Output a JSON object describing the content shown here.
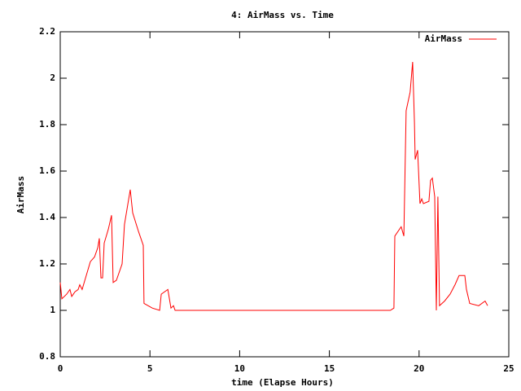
{
  "chart_data": {
    "type": "line",
    "title": "4: AirMass vs. Time",
    "x_label": "time (Elapse Hours)",
    "y_label": "AirMass",
    "xlim": [
      0,
      25
    ],
    "xticks": [
      0,
      5,
      10,
      15,
      20,
      25
    ],
    "ylim": [
      0.8,
      2.2
    ],
    "yticks": [
      0.8,
      1,
      1.2,
      1.4,
      1.6,
      1.8,
      2,
      2.2
    ],
    "legend": "top-right",
    "x": [
      0,
      0.09,
      0.36,
      0.54,
      0.64,
      0.82,
      1.0,
      1.09,
      1.22,
      1.41,
      1.68,
      1.91,
      2.09,
      2.18,
      2.27,
      2.36,
      2.45,
      2.68,
      2.86,
      2.95,
      3.13,
      3.45,
      3.58,
      3.9,
      4.04,
      4.36,
      4.63,
      4.67,
      4.9,
      5.13,
      5.54,
      5.63,
      6.0,
      6.17,
      6.31,
      6.4,
      18.4,
      18.6,
      18.65,
      19.0,
      19.15,
      19.28,
      19.5,
      19.64,
      19.74,
      19.78,
      19.92,
      20.05,
      20.15,
      20.24,
      20.55,
      20.64,
      20.74,
      20.87,
      20.96,
      21.05,
      21.14,
      21.42,
      21.73,
      22.0,
      22.23,
      22.55,
      22.64,
      22.82,
      23.32,
      23.68,
      23.82
    ],
    "series": [
      {
        "name": "AirMass",
        "color": "#ff0000",
        "values": [
          1.12,
          1.05,
          1.07,
          1.09,
          1.06,
          1.08,
          1.09,
          1.11,
          1.09,
          1.14,
          1.21,
          1.23,
          1.27,
          1.31,
          1.14,
          1.14,
          1.29,
          1.35,
          1.41,
          1.12,
          1.13,
          1.2,
          1.37,
          1.52,
          1.42,
          1.34,
          1.28,
          1.03,
          1.02,
          1.01,
          1.0,
          1.07,
          1.09,
          1.01,
          1.02,
          1.0,
          1.0,
          1.01,
          1.32,
          1.36,
          1.32,
          1.86,
          1.94,
          2.07,
          1.81,
          1.65,
          1.69,
          1.46,
          1.48,
          1.46,
          1.47,
          1.56,
          1.57,
          1.49,
          1.0,
          1.49,
          1.02,
          1.04,
          1.07,
          1.11,
          1.15,
          1.15,
          1.09,
          1.03,
          1.02,
          1.04,
          1.02
        ]
      }
    ]
  }
}
